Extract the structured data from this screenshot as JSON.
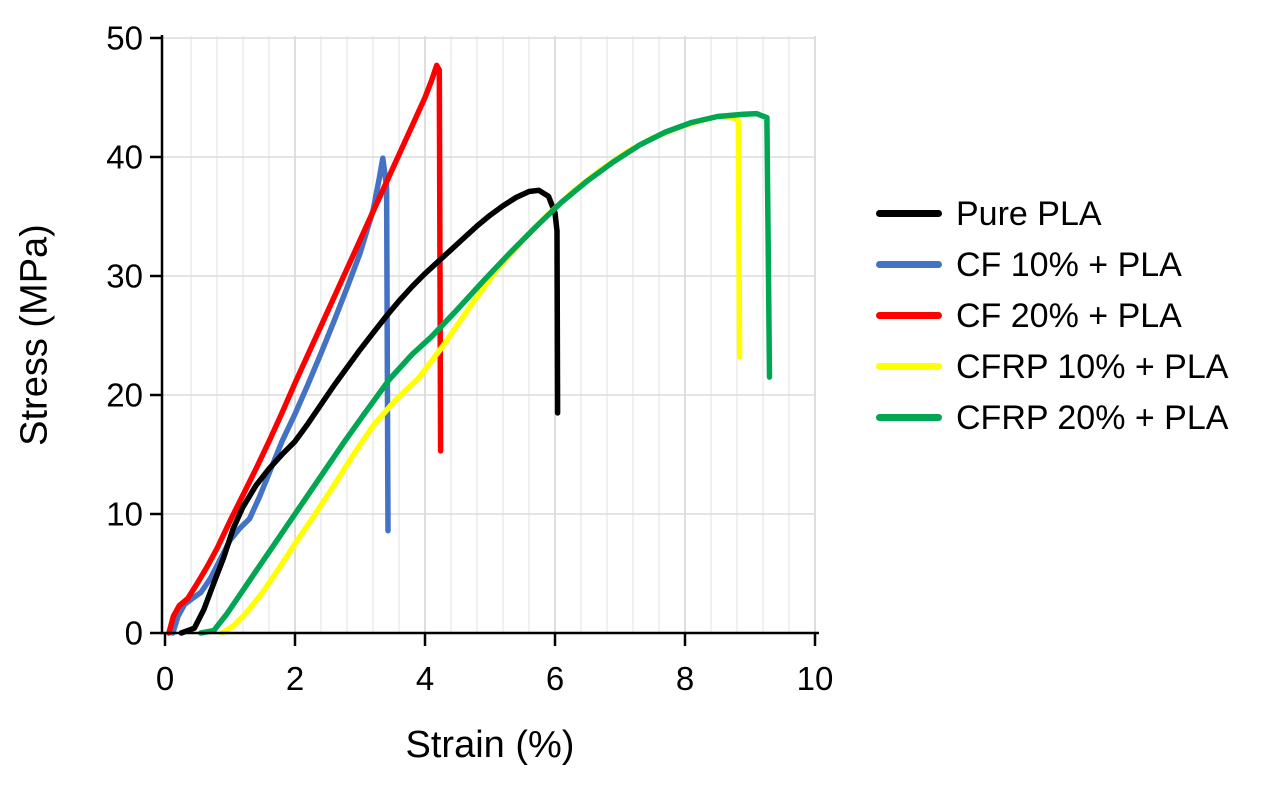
{
  "figure": {
    "background": "#FFFFFF"
  },
  "chart_data": {
    "type": "line",
    "title": "",
    "xlabel": "Strain (%)",
    "ylabel": "Stress (MPa)",
    "xlim": [
      0,
      10
    ],
    "ylim": [
      0,
      50
    ],
    "x_major_ticks": [
      0,
      2,
      4,
      6,
      8,
      10
    ],
    "x_minor_step": 0.4,
    "y_major_ticks": [
      0,
      10,
      20,
      30,
      40,
      50
    ],
    "grid": "on",
    "legend_position": "right",
    "grid_colors": {
      "minor_vertical": "#E8E8E8",
      "major_vertical": "#D4D4D4",
      "horizontal": "#DBDBDB"
    },
    "axis_color": "#000000",
    "series": [
      {
        "name": "Pure PLA",
        "color": "#000000",
        "points": [
          [
            0.25,
            0
          ],
          [
            0.45,
            0.4
          ],
          [
            0.6,
            2
          ],
          [
            0.75,
            4.2
          ],
          [
            0.9,
            6.3
          ],
          [
            1.05,
            8.8
          ],
          [
            1.2,
            10.6
          ],
          [
            1.4,
            12.4
          ],
          [
            1.6,
            13.8
          ],
          [
            1.8,
            15
          ],
          [
            2,
            16.1
          ],
          [
            2.2,
            17.6
          ],
          [
            2.4,
            19.2
          ],
          [
            2.6,
            20.8
          ],
          [
            2.8,
            22.3
          ],
          [
            3,
            23.8
          ],
          [
            3.2,
            25.2
          ],
          [
            3.4,
            26.6
          ],
          [
            3.6,
            27.9
          ],
          [
            3.8,
            29.1
          ],
          [
            4,
            30.2
          ],
          [
            4.2,
            31.2
          ],
          [
            4.4,
            32.2
          ],
          [
            4.6,
            33.2
          ],
          [
            4.8,
            34.2
          ],
          [
            5,
            35.1
          ],
          [
            5.2,
            35.9
          ],
          [
            5.4,
            36.6
          ],
          [
            5.6,
            37.1
          ],
          [
            5.75,
            37.2
          ],
          [
            5.9,
            36.7
          ],
          [
            6,
            35.3
          ],
          [
            6.03,
            33.8
          ],
          [
            6.04,
            18.5
          ]
        ]
      },
      {
        "name": "CF 10% + PLA",
        "color": "#4472C4",
        "points": [
          [
            0.12,
            0
          ],
          [
            0.2,
            1.4
          ],
          [
            0.3,
            2.4
          ],
          [
            0.42,
            2.9
          ],
          [
            0.55,
            3.4
          ],
          [
            0.7,
            4.6
          ],
          [
            0.85,
            6.2
          ],
          [
            1,
            7.8
          ],
          [
            1.15,
            8.8
          ],
          [
            1.3,
            9.6
          ],
          [
            1.45,
            11.4
          ],
          [
            1.6,
            13.4
          ],
          [
            1.8,
            16.1
          ],
          [
            2,
            18.4
          ],
          [
            2.2,
            20.9
          ],
          [
            2.4,
            23.5
          ],
          [
            2.6,
            26.2
          ],
          [
            2.8,
            29
          ],
          [
            3,
            31.9
          ],
          [
            3.2,
            35.5
          ],
          [
            3.3,
            38.3
          ],
          [
            3.35,
            39.9
          ],
          [
            3.41,
            37.5
          ],
          [
            3.43,
            8.6
          ]
        ]
      },
      {
        "name": "CF 20% + PLA",
        "color": "#FF0000",
        "points": [
          [
            0.06,
            0
          ],
          [
            0.13,
            1.4
          ],
          [
            0.22,
            2.3
          ],
          [
            0.35,
            2.9
          ],
          [
            0.5,
            4.2
          ],
          [
            0.65,
            5.6
          ],
          [
            0.8,
            7.1
          ],
          [
            1,
            9.4
          ],
          [
            1.2,
            11.6
          ],
          [
            1.4,
            13.8
          ],
          [
            1.6,
            16.1
          ],
          [
            1.8,
            18.5
          ],
          [
            2,
            21
          ],
          [
            2.2,
            23.4
          ],
          [
            2.4,
            25.8
          ],
          [
            2.6,
            28.2
          ],
          [
            2.8,
            30.6
          ],
          [
            3,
            33
          ],
          [
            3.2,
            35.4
          ],
          [
            3.4,
            37.8
          ],
          [
            3.6,
            40.2
          ],
          [
            3.8,
            42.6
          ],
          [
            4,
            45
          ],
          [
            4.1,
            46.4
          ],
          [
            4.18,
            47.7
          ],
          [
            4.22,
            47.3
          ],
          [
            4.24,
            15.3
          ]
        ]
      },
      {
        "name": "CFRP 10% + PLA",
        "color": "#FFFF00",
        "points": [
          [
            0.88,
            0
          ],
          [
            1.05,
            0.6
          ],
          [
            1.25,
            1.7
          ],
          [
            1.5,
            3.4
          ],
          [
            1.75,
            5.4
          ],
          [
            2,
            7.5
          ],
          [
            2.3,
            9.9
          ],
          [
            2.6,
            12.4
          ],
          [
            2.9,
            15
          ],
          [
            3.2,
            17.4
          ],
          [
            3.55,
            19.6
          ],
          [
            3.9,
            21.4
          ],
          [
            4.3,
            24.3
          ],
          [
            4.7,
            27.5
          ],
          [
            5.1,
            30.5
          ],
          [
            5.5,
            33
          ],
          [
            5.9,
            35.2
          ],
          [
            6.3,
            37.2
          ],
          [
            6.7,
            38.9
          ],
          [
            7.1,
            40.4
          ],
          [
            7.5,
            41.6
          ],
          [
            7.9,
            42.5
          ],
          [
            8.2,
            43
          ],
          [
            8.5,
            43.4
          ],
          [
            8.75,
            43.3
          ],
          [
            8.82,
            43
          ],
          [
            8.84,
            23.2
          ]
        ]
      },
      {
        "name": "CFRP 20% + PLA",
        "color": "#00A651",
        "points": [
          [
            0.55,
            0
          ],
          [
            0.75,
            0.2
          ],
          [
            0.95,
            1.6
          ],
          [
            1.15,
            3.2
          ],
          [
            1.4,
            5.2
          ],
          [
            1.65,
            7.2
          ],
          [
            1.9,
            9.2
          ],
          [
            2.15,
            11.2
          ],
          [
            2.45,
            13.6
          ],
          [
            2.75,
            16
          ],
          [
            3.05,
            18.3
          ],
          [
            3.45,
            21.3
          ],
          [
            3.8,
            23.4
          ],
          [
            4.1,
            24.9
          ],
          [
            4.5,
            27.2
          ],
          [
            4.9,
            29.6
          ],
          [
            5.3,
            31.9
          ],
          [
            5.7,
            34.1
          ],
          [
            6.1,
            36.2
          ],
          [
            6.5,
            38
          ],
          [
            6.9,
            39.6
          ],
          [
            7.3,
            41
          ],
          [
            7.7,
            42.1
          ],
          [
            8.1,
            42.9
          ],
          [
            8.5,
            43.4
          ],
          [
            8.9,
            43.6
          ],
          [
            9.1,
            43.65
          ],
          [
            9.26,
            43.3
          ],
          [
            9.3,
            21.5
          ]
        ]
      }
    ],
    "draw_order": [
      1,
      2,
      0,
      3,
      4
    ]
  },
  "legend": {
    "items": [
      {
        "label": "Pure PLA"
      },
      {
        "label": "CF 10% + PLA"
      },
      {
        "label": "CF 20% + PLA"
      },
      {
        "label": "CFRP 10% + PLA"
      },
      {
        "label": "CFRP 20% + PLA"
      }
    ]
  }
}
